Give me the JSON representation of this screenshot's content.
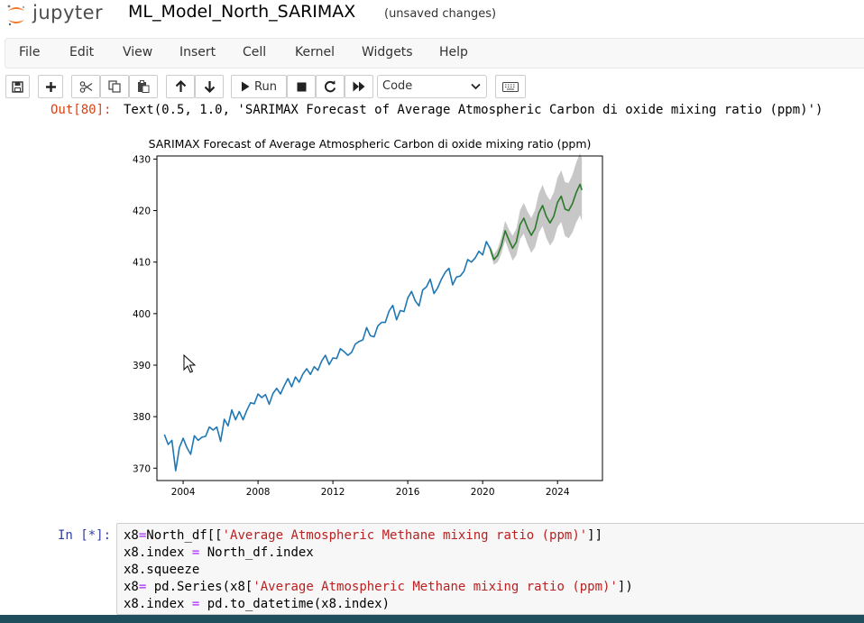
{
  "header": {
    "logo_text": "jupyter",
    "notebook_name": "ML_Model_North_SARIMAX",
    "save_status": "(unsaved changes)"
  },
  "menu": [
    "File",
    "Edit",
    "View",
    "Insert",
    "Cell",
    "Kernel",
    "Widgets",
    "Help"
  ],
  "toolbar": {
    "run_label": "Run",
    "cell_type": "Code",
    "icons": [
      "save-icon",
      "plus-icon",
      "scissors-icon",
      "copy-icon",
      "paste-icon",
      "arrow-up-icon",
      "arrow-down-icon",
      "play-icon",
      "stop-icon",
      "restart-icon",
      "fast-forward-icon",
      "keyboard-icon"
    ]
  },
  "output_cell": {
    "prompt": "Out[80]:",
    "text": "Text(0.5, 1.0, 'SARIMAX Forecast of Average Atmospheric Carbon di oxide mixing ratio (ppm)')"
  },
  "input_cell": {
    "prompt": "In [*]:",
    "lines": [
      "x8=North_df[['Average Atmospheric Methane mixing ratio (ppm)']]",
      "x8.index = North_df.index",
      "x8.squeeze",
      "x8= pd.Series(x8['Average Atmospheric Methane mixing ratio (ppm)'])",
      "x8.index = pd.to_datetime(x8.index)"
    ]
  },
  "chart_data": {
    "type": "line",
    "title": "SARIMAX Forecast of Average Atmospheric Carbon di oxide mixing ratio (ppm)",
    "xlabel": "",
    "ylabel": "",
    "xlim": [
      2002.6,
      2026.4
    ],
    "ylim": [
      367.6,
      430.6
    ],
    "xticks": [
      2004,
      2008,
      2012,
      2016,
      2020,
      2024
    ],
    "yticks": [
      370,
      380,
      390,
      400,
      410,
      420,
      430
    ],
    "grid": false,
    "colors": {
      "observed": "#1f77b4",
      "forecast": "#2a7a2a",
      "confidence": "#bdbdbd"
    },
    "series": [
      {
        "role": "observed",
        "x": [
          2003.0,
          2003.2,
          2003.4,
          2003.6,
          2003.8,
          2004.0,
          2004.2,
          2004.4,
          2004.6,
          2004.8,
          2005.0,
          2005.2,
          2005.4,
          2005.6,
          2005.8,
          2006.0,
          2006.2,
          2006.4,
          2006.6,
          2006.8,
          2007.0,
          2007.2,
          2007.4,
          2007.6,
          2007.8,
          2008.0,
          2008.2,
          2008.4,
          2008.6,
          2008.8,
          2009.0,
          2009.2,
          2009.4,
          2009.6,
          2009.8,
          2010.0,
          2010.2,
          2010.4,
          2010.6,
          2010.8,
          2011.0,
          2011.2,
          2011.4,
          2011.6,
          2011.8,
          2012.0,
          2012.2,
          2012.4,
          2012.6,
          2012.8,
          2013.0,
          2013.2,
          2013.4,
          2013.6,
          2013.8,
          2014.0,
          2014.2,
          2014.4,
          2014.6,
          2014.8,
          2015.0,
          2015.2,
          2015.4,
          2015.6,
          2015.8,
          2016.0,
          2016.2,
          2016.4,
          2016.6,
          2016.8,
          2017.0,
          2017.2,
          2017.4,
          2017.6,
          2017.8,
          2018.0,
          2018.2,
          2018.4,
          2018.6,
          2018.8,
          2019.0,
          2019.2,
          2019.4,
          2019.6,
          2019.8,
          2020.0,
          2020.2,
          2020.4
        ],
        "y": [
          376.5,
          374.6,
          375.4,
          369.5,
          374.0,
          375.8,
          374.0,
          372.7,
          376.3,
          375.4,
          376.0,
          376.2,
          378.0,
          377.4,
          378.0,
          375.2,
          379.5,
          378.2,
          381.3,
          379.4,
          381.0,
          379.4,
          381.2,
          382.7,
          382.5,
          384.4,
          383.7,
          384.3,
          382.4,
          384.5,
          385.5,
          384.4,
          386.0,
          387.4,
          385.8,
          387.7,
          386.7,
          388.3,
          389.3,
          388.2,
          389.7,
          389.0,
          390.8,
          391.9,
          390.1,
          391.4,
          391.3,
          393.2,
          392.6,
          391.9,
          392.5,
          394.1,
          394.6,
          394.9,
          397.3,
          395.7,
          395.5,
          397.6,
          398.3,
          398.3,
          400.5,
          401.6,
          398.8,
          400.6,
          400.4,
          403.0,
          404.3,
          402.5,
          401.5,
          404.6,
          405.2,
          406.7,
          403.9,
          405.0,
          406.7,
          408.0,
          408.8,
          405.6,
          407.1,
          407.3,
          408.2,
          410.5,
          410.0,
          410.8,
          412.1,
          411.4,
          414.0,
          412.6
        ]
      },
      {
        "role": "forecast",
        "x": [
          2020.4,
          2020.6,
          2020.8,
          2021.0,
          2021.2,
          2021.4,
          2021.6,
          2021.8,
          2022.0,
          2022.2,
          2022.4,
          2022.6,
          2022.8,
          2023.0,
          2023.2,
          2023.4,
          2023.6,
          2023.8,
          2024.0,
          2024.2,
          2024.4,
          2024.6,
          2024.8,
          2025.0,
          2025.2,
          2025.3
        ],
        "y": [
          412.6,
          410.5,
          411.3,
          413.2,
          416.1,
          414.3,
          412.7,
          413.9,
          417.3,
          418.5,
          416.6,
          415.2,
          416.5,
          419.5,
          421.0,
          418.9,
          417.6,
          418.9,
          421.6,
          422.8,
          420.3,
          420.0,
          421.4,
          423.5,
          425.1,
          424.0
        ]
      }
    ],
    "confidence_band": {
      "x": [
        2020.4,
        2020.6,
        2020.8,
        2021.0,
        2021.2,
        2021.4,
        2021.6,
        2021.8,
        2022.0,
        2022.2,
        2022.4,
        2022.6,
        2022.8,
        2023.0,
        2023.2,
        2023.4,
        2023.6,
        2023.8,
        2024.0,
        2024.2,
        2024.4,
        2024.6,
        2024.8,
        2025.0,
        2025.2,
        2025.3
      ],
      "upper": [
        413.3,
        411.5,
        412.6,
        414.8,
        418.0,
        416.4,
        415.1,
        416.5,
        420.1,
        421.5,
        419.8,
        418.6,
        420.1,
        423.3,
        425.0,
        423.1,
        422.0,
        423.5,
        426.4,
        427.8,
        425.5,
        425.4,
        427.0,
        429.3,
        431.1,
        430.1
      ],
      "lower": [
        411.9,
        409.5,
        410.0,
        411.6,
        414.2,
        412.2,
        410.3,
        411.3,
        414.5,
        415.5,
        413.4,
        411.8,
        412.9,
        415.7,
        417.0,
        414.7,
        413.2,
        414.3,
        416.8,
        417.8,
        415.1,
        414.6,
        415.8,
        417.7,
        419.1,
        417.9
      ]
    }
  }
}
